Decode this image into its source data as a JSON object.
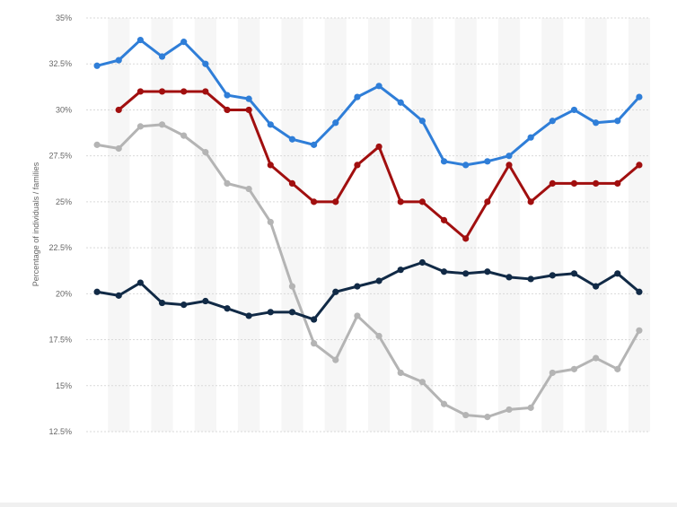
{
  "chart_data": {
    "type": "line",
    "title": "",
    "xlabel": "",
    "ylabel": "Percentage of individuals / families",
    "ylim": [
      12.5,
      35
    ],
    "yticks": [
      "12.5%",
      "15%",
      "17.5%",
      "20%",
      "22.5%",
      "25%",
      "27.5%",
      "30%",
      "32.5%",
      "35%"
    ],
    "ytick_values": [
      12.5,
      15,
      17.5,
      20,
      22.5,
      25,
      27.5,
      30,
      32.5,
      35
    ],
    "grid": true,
    "legend": "none",
    "x": [
      1,
      2,
      3,
      4,
      5,
      6,
      7,
      8,
      9,
      10,
      11,
      12,
      13,
      14,
      15,
      16,
      17,
      18,
      19,
      20,
      21,
      22,
      23,
      24,
      25,
      26
    ],
    "series": [
      {
        "color": "#2f7ed8",
        "values": [
          32.4,
          32.7,
          33.8,
          32.9,
          33.7,
          32.5,
          30.8,
          30.6,
          29.2,
          28.4,
          28.1,
          29.3,
          30.7,
          31.3,
          30.4,
          29.4,
          27.2,
          27.0,
          27.2,
          27.5,
          28.5,
          29.4,
          30.0,
          29.3,
          29.4,
          30.7
        ]
      },
      {
        "color": "#a10f0f",
        "values": [
          null,
          30.0,
          31.0,
          31.0,
          31.0,
          31.0,
          30.0,
          30.0,
          27.0,
          26.0,
          25.0,
          25.0,
          27.0,
          28.0,
          25.0,
          25.0,
          24.0,
          23.0,
          25.0,
          27.0,
          25.0,
          26.0,
          26.0,
          26.0,
          26.0,
          27.0
        ]
      },
      {
        "color": "#b4b4b4",
        "values": [
          28.1,
          27.9,
          29.1,
          29.2,
          28.6,
          27.7,
          26.0,
          25.7,
          23.9,
          20.4,
          17.3,
          16.4,
          18.8,
          17.7,
          15.7,
          15.2,
          14.0,
          13.4,
          13.3,
          13.7,
          13.8,
          15.7,
          15.9,
          16.5,
          15.9,
          18.0
        ]
      },
      {
        "color": "#112a46",
        "values": [
          20.1,
          19.9,
          20.6,
          19.5,
          19.4,
          19.6,
          19.2,
          18.8,
          19.0,
          19.0,
          18.6,
          20.1,
          20.4,
          20.7,
          21.3,
          21.7,
          21.2,
          21.1,
          21.2,
          20.9,
          20.8,
          21.0,
          21.1,
          20.4,
          21.1,
          20.1
        ]
      }
    ]
  }
}
